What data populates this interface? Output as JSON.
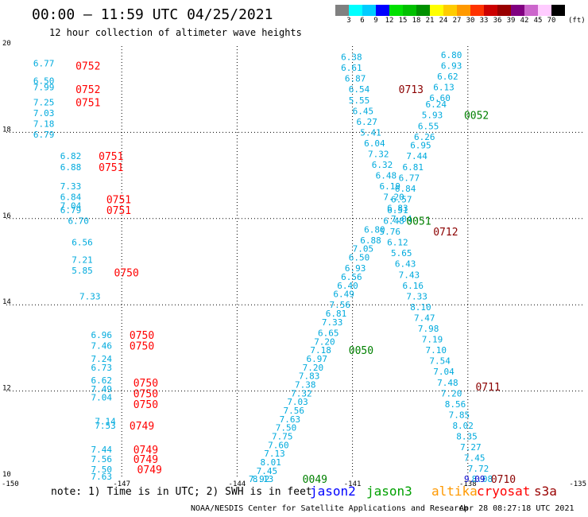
{
  "header": {
    "title": "00:00 – 11:59 UTC 04/25/2021",
    "subtitle": "12 hour collection of altimeter wave heights",
    "legend": [
      {
        "label": "3",
        "color": "#808080"
      },
      {
        "label": "6",
        "color": "#00ffff"
      },
      {
        "label": "9",
        "color": "#00ccff"
      },
      {
        "label": "12",
        "color": "#0000ff"
      },
      {
        "label": "15",
        "color": "#00e000"
      },
      {
        "label": "18",
        "color": "#00c000"
      },
      {
        "label": "21",
        "color": "#009000"
      },
      {
        "label": "24",
        "color": "#ffff00"
      },
      {
        "label": "27",
        "color": "#ffcc00"
      },
      {
        "label": "30",
        "color": "#ff9900"
      },
      {
        "label": "33",
        "color": "#ff3300"
      },
      {
        "label": "36",
        "color": "#cc0000"
      },
      {
        "label": "39",
        "color": "#990000"
      },
      {
        "label": "42",
        "color": "#800080"
      },
      {
        "label": "45",
        "color": "#cc66cc"
      },
      {
        "label": "70",
        "color": "#ffccff"
      },
      {
        "label": "",
        "color": "#000000"
      }
    ],
    "legend_unit": "(ft)"
  },
  "footer": {
    "note": "note: 1) Time is in UTC; 2) SWH is in feet",
    "satellites": [
      {
        "name": "jason2",
        "color": "#0000ff"
      },
      {
        "name": "jason3",
        "color": "#00a000"
      },
      {
        "name": "altika",
        "color": "#ff9900"
      },
      {
        "name": "cryosat",
        "color": "#ff0000"
      },
      {
        "name": "s3a",
        "color": "#990000"
      }
    ],
    "credit": "NOAA/NESDIS Center for Satellite Applications and Research",
    "generated": "Apr 28 08:27:18 UTC 2021"
  },
  "chart_data": {
    "type": "scatter",
    "title": "00:00 – 11:59 UTC 04/25/2021",
    "xlim": [
      -150,
      -135
    ],
    "ylim": [
      10,
      20
    ],
    "x_ticks": [
      "-150",
      "-147",
      "-144",
      "-141",
      "-138",
      "-135"
    ],
    "y_ticks": [
      "10",
      "12",
      "14",
      "16",
      "18",
      "20"
    ],
    "grid": true,
    "colors": {
      "swh": "#00aadd",
      "cryosat": "#ff0000",
      "jason3": "#008000",
      "s3a": "#8b0000",
      "jason2": "#0000cc"
    },
    "points": [
      {
        "x": -149.3,
        "y": 19.6,
        "t": "6.77"
      },
      {
        "x": -149.3,
        "y": 19.2,
        "t": "6.50"
      },
      {
        "x": -149.3,
        "y": 19.05,
        "t": "7.99"
      },
      {
        "x": -149.3,
        "y": 18.7,
        "t": "7.25"
      },
      {
        "x": -149.3,
        "y": 18.45,
        "t": "7.03"
      },
      {
        "x": -149.3,
        "y": 18.2,
        "t": "7.18"
      },
      {
        "x": -149.3,
        "y": 17.95,
        "t": "6.79"
      },
      {
        "x": -148.6,
        "y": 17.45,
        "t": "6.82"
      },
      {
        "x": -148.6,
        "y": 17.2,
        "t": "6.88"
      },
      {
        "x": -148.6,
        "y": 16.75,
        "t": "7.33"
      },
      {
        "x": -148.6,
        "y": 16.5,
        "t": "6.84"
      },
      {
        "x": -148.6,
        "y": 16.3,
        "t": "7.04"
      },
      {
        "x": -148.6,
        "y": 16.2,
        "t": "6.79"
      },
      {
        "x": -148.4,
        "y": 15.95,
        "t": "6.70"
      },
      {
        "x": -148.3,
        "y": 15.45,
        "t": "6.56"
      },
      {
        "x": -148.3,
        "y": 15.05,
        "t": "7.21"
      },
      {
        "x": -148.3,
        "y": 14.8,
        "t": "5.85"
      },
      {
        "x": -148.1,
        "y": 14.2,
        "t": "7.33"
      },
      {
        "x": -147.8,
        "y": 13.3,
        "t": "6.96"
      },
      {
        "x": -147.8,
        "y": 13.05,
        "t": "7.46"
      },
      {
        "x": -147.8,
        "y": 12.75,
        "t": "7.24"
      },
      {
        "x": -147.8,
        "y": 12.55,
        "t": "6.73"
      },
      {
        "x": -147.8,
        "y": 12.25,
        "t": "6.62"
      },
      {
        "x": -147.8,
        "y": 12.05,
        "t": "7.49"
      },
      {
        "x": -147.8,
        "y": 11.85,
        "t": "7.04"
      },
      {
        "x": -147.7,
        "y": 11.3,
        "t": "7.14"
      },
      {
        "x": -147.7,
        "y": 11.2,
        "t": "7.53"
      },
      {
        "x": -147.8,
        "y": 10.65,
        "t": "7.44"
      },
      {
        "x": -147.8,
        "y": 10.42,
        "t": "7.56"
      },
      {
        "x": -147.8,
        "y": 10.18,
        "t": "7.50"
      },
      {
        "x": -147.8,
        "y": 10.02,
        "t": "7.63"
      },
      {
        "x": -141.3,
        "y": 19.75,
        "t": "6.38"
      },
      {
        "x": -141.3,
        "y": 19.5,
        "t": "6.61"
      },
      {
        "x": -141.2,
        "y": 19.25,
        "t": "6.87"
      },
      {
        "x": -141.1,
        "y": 19.0,
        "t": "6.54"
      },
      {
        "x": -141.1,
        "y": 18.75,
        "t": "5.55"
      },
      {
        "x": -141.0,
        "y": 18.5,
        "t": "6.45"
      },
      {
        "x": -140.9,
        "y": 18.25,
        "t": "6.27"
      },
      {
        "x": -140.8,
        "y": 18.0,
        "t": "5.41"
      },
      {
        "x": -140.7,
        "y": 17.75,
        "t": "6.04"
      },
      {
        "x": -140.6,
        "y": 17.5,
        "t": "7.32"
      },
      {
        "x": -140.5,
        "y": 17.25,
        "t": "6.32"
      },
      {
        "x": -140.4,
        "y": 17.0,
        "t": "6.48"
      },
      {
        "x": -140.3,
        "y": 16.75,
        "t": "6.19"
      },
      {
        "x": -140.2,
        "y": 16.5,
        "t": "7.20"
      },
      {
        "x": -140.1,
        "y": 16.25,
        "t": "6.83"
      },
      {
        "x": -140.0,
        "y": 16.0,
        "t": "7.04"
      },
      {
        "x": -140.7,
        "y": 15.75,
        "t": "6.80"
      },
      {
        "x": -140.8,
        "y": 15.5,
        "t": "6.88"
      },
      {
        "x": -141.0,
        "y": 15.3,
        "t": "7.05"
      },
      {
        "x": -141.1,
        "y": 15.1,
        "t": "6.50"
      },
      {
        "x": -141.2,
        "y": 14.85,
        "t": "6.93"
      },
      {
        "x": -141.3,
        "y": 14.65,
        "t": "6.56"
      },
      {
        "x": -141.4,
        "y": 14.45,
        "t": "6.40"
      },
      {
        "x": -141.5,
        "y": 14.25,
        "t": "6.49"
      },
      {
        "x": -141.6,
        "y": 14.0,
        "t": "7.56"
      },
      {
        "x": -141.7,
        "y": 13.8,
        "t": "6.81"
      },
      {
        "x": -141.8,
        "y": 13.6,
        "t": "7.33"
      },
      {
        "x": -141.9,
        "y": 13.35,
        "t": "6.65"
      },
      {
        "x": -142.0,
        "y": 13.15,
        "t": "7.20"
      },
      {
        "x": -142.1,
        "y": 12.95,
        "t": "7.18"
      },
      {
        "x": -142.2,
        "y": 12.75,
        "t": "6.97"
      },
      {
        "x": -142.3,
        "y": 12.55,
        "t": "7.20"
      },
      {
        "x": -142.4,
        "y": 12.35,
        "t": "7.83"
      },
      {
        "x": -142.5,
        "y": 12.15,
        "t": "7.38"
      },
      {
        "x": -142.6,
        "y": 11.95,
        "t": "7.32"
      },
      {
        "x": -142.7,
        "y": 11.75,
        "t": "7.03"
      },
      {
        "x": -142.8,
        "y": 11.55,
        "t": "7.56"
      },
      {
        "x": -142.9,
        "y": 11.35,
        "t": "7.63"
      },
      {
        "x": -143.0,
        "y": 11.15,
        "t": "7.50"
      },
      {
        "x": -143.1,
        "y": 10.95,
        "t": "7.75"
      },
      {
        "x": -143.2,
        "y": 10.75,
        "t": "7.60"
      },
      {
        "x": -143.3,
        "y": 10.55,
        "t": "7.13"
      },
      {
        "x": -143.4,
        "y": 10.35,
        "t": "8.01"
      },
      {
        "x": -143.5,
        "y": 10.15,
        "t": "7.45"
      },
      {
        "x": -143.6,
        "y": 9.95,
        "t": "8.13"
      },
      {
        "x": -143.7,
        "y": 9.75,
        "t": "7.92"
      },
      {
        "x": -138.7,
        "y": 19.8,
        "t": "6.80"
      },
      {
        "x": -138.7,
        "y": 19.55,
        "t": "6.93"
      },
      {
        "x": -138.8,
        "y": 19.3,
        "t": "6.62"
      },
      {
        "x": -138.9,
        "y": 19.05,
        "t": "6.13"
      },
      {
        "x": -139.0,
        "y": 18.8,
        "t": "6.60"
      },
      {
        "x": -139.1,
        "y": 18.65,
        "t": "6.24"
      },
      {
        "x": -139.2,
        "y": 18.4,
        "t": "5.93"
      },
      {
        "x": -139.3,
        "y": 18.15,
        "t": "6.55"
      },
      {
        "x": -139.4,
        "y": 17.9,
        "t": "6.26"
      },
      {
        "x": -139.5,
        "y": 17.7,
        "t": "6.95"
      },
      {
        "x": -139.6,
        "y": 17.45,
        "t": "7.44"
      },
      {
        "x": -139.7,
        "y": 17.2,
        "t": "6.81"
      },
      {
        "x": -139.8,
        "y": 16.95,
        "t": "6.77"
      },
      {
        "x": -139.9,
        "y": 16.7,
        "t": "6.84"
      },
      {
        "x": -140.0,
        "y": 16.45,
        "t": "6.57"
      },
      {
        "x": -140.1,
        "y": 16.2,
        "t": "6.51"
      },
      {
        "x": -140.2,
        "y": 15.95,
        "t": "6.48"
      },
      {
        "x": -140.3,
        "y": 15.7,
        "t": "5.76"
      },
      {
        "x": -140.1,
        "y": 15.45,
        "t": "6.12"
      },
      {
        "x": -140.0,
        "y": 15.2,
        "t": "5.65"
      },
      {
        "x": -139.9,
        "y": 14.95,
        "t": "6.43"
      },
      {
        "x": -139.8,
        "y": 14.7,
        "t": "7.43"
      },
      {
        "x": -139.7,
        "y": 14.45,
        "t": "6.16"
      },
      {
        "x": -139.6,
        "y": 14.2,
        "t": "7.33"
      },
      {
        "x": -139.5,
        "y": 13.95,
        "t": "8.10"
      },
      {
        "x": -139.4,
        "y": 13.7,
        "t": "7.47"
      },
      {
        "x": -139.3,
        "y": 13.45,
        "t": "7.98"
      },
      {
        "x": -139.2,
        "y": 13.2,
        "t": "7.19"
      },
      {
        "x": -139.1,
        "y": 12.95,
        "t": "7.10"
      },
      {
        "x": -139.0,
        "y": 12.7,
        "t": "7.54"
      },
      {
        "x": -138.9,
        "y": 12.45,
        "t": "7.04"
      },
      {
        "x": -138.8,
        "y": 12.2,
        "t": "7.48"
      },
      {
        "x": -138.7,
        "y": 11.95,
        "t": "7.20"
      },
      {
        "x": -138.6,
        "y": 11.7,
        "t": "8.56"
      },
      {
        "x": -138.5,
        "y": 11.45,
        "t": "7.85"
      },
      {
        "x": -138.4,
        "y": 11.2,
        "t": "8.02"
      },
      {
        "x": -138.3,
        "y": 10.95,
        "t": "8.35"
      },
      {
        "x": -138.2,
        "y": 10.7,
        "t": "7.27"
      },
      {
        "x": -138.1,
        "y": 10.45,
        "t": "7.45"
      },
      {
        "x": -138.0,
        "y": 10.2,
        "t": "7.72"
      },
      {
        "x": -137.9,
        "y": 9.95,
        "t": "8.08"
      }
    ],
    "track_labels": [
      {
        "x": -148.2,
        "y": 19.55,
        "t": "0752",
        "c": "cryosat"
      },
      {
        "x": -148.2,
        "y": 19.0,
        "t": "0752",
        "c": "cryosat"
      },
      {
        "x": -148.2,
        "y": 18.7,
        "t": "0751",
        "c": "cryosat"
      },
      {
        "x": -147.6,
        "y": 17.45,
        "t": "0751",
        "c": "cryosat"
      },
      {
        "x": -147.6,
        "y": 17.2,
        "t": "0751",
        "c": "cryosat"
      },
      {
        "x": -147.4,
        "y": 16.45,
        "t": "0751",
        "c": "cryosat"
      },
      {
        "x": -147.4,
        "y": 16.2,
        "t": "0751",
        "c": "cryosat"
      },
      {
        "x": -147.2,
        "y": 14.75,
        "t": "0750",
        "c": "cryosat"
      },
      {
        "x": -146.8,
        "y": 13.3,
        "t": "0750",
        "c": "cryosat"
      },
      {
        "x": -146.8,
        "y": 13.05,
        "t": "0750",
        "c": "cryosat"
      },
      {
        "x": -146.7,
        "y": 12.2,
        "t": "0750",
        "c": "cryosat"
      },
      {
        "x": -146.7,
        "y": 11.95,
        "t": "0750",
        "c": "cryosat"
      },
      {
        "x": -146.7,
        "y": 11.7,
        "t": "0750",
        "c": "cryosat"
      },
      {
        "x": -146.8,
        "y": 11.2,
        "t": "0749",
        "c": "cryosat"
      },
      {
        "x": -146.7,
        "y": 10.65,
        "t": "0749",
        "c": "cryosat"
      },
      {
        "x": -146.7,
        "y": 10.42,
        "t": "0749",
        "c": "cryosat"
      },
      {
        "x": -146.6,
        "y": 10.18,
        "t": "0749",
        "c": "cryosat"
      },
      {
        "x": -139.8,
        "y": 19.0,
        "t": "0713",
        "c": "s3a"
      },
      {
        "x": -138.1,
        "y": 18.4,
        "t": "0052",
        "c": "jason3"
      },
      {
        "x": -139.6,
        "y": 15.95,
        "t": "0051",
        "c": "jason3"
      },
      {
        "x": -138.9,
        "y": 15.7,
        "t": "0712",
        "c": "s3a"
      },
      {
        "x": -141.1,
        "y": 12.95,
        "t": "0050",
        "c": "jason3"
      },
      {
        "x": -137.8,
        "y": 12.1,
        "t": "0711",
        "c": "s3a"
      },
      {
        "x": -142.3,
        "y": 9.95,
        "t": "0049",
        "c": "jason3"
      },
      {
        "x": -137.4,
        "y": 9.95,
        "t": "0710",
        "c": "s3a"
      }
    ],
    "blue_points": [
      {
        "x": -138.1,
        "y": 9.95,
        "t": "9.09"
      }
    ]
  }
}
